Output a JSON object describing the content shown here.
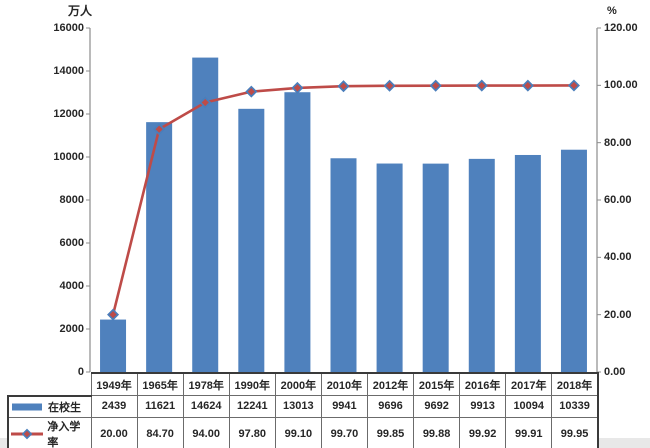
{
  "chart_data": {
    "type": "bar",
    "combo": "bar+line",
    "title": "",
    "categories": [
      "1949年",
      "1965年",
      "1978年",
      "1990年",
      "2000年",
      "2010年",
      "2012年",
      "2015年",
      "2016年",
      "2017年",
      "2018年"
    ],
    "series": [
      {
        "name": "在校生",
        "type": "bar",
        "axis": "left",
        "color": "#4f81bd",
        "values": [
          2439,
          11621,
          14624,
          12241,
          13013,
          9941,
          9696,
          9692,
          9913,
          10094,
          10339
        ]
      },
      {
        "name": "净入学率",
        "type": "line",
        "axis": "right",
        "color": "#be4b48",
        "marker": "diamond",
        "marker_border": "#4a7ebb",
        "values": [
          20.0,
          84.7,
          94.0,
          97.8,
          99.1,
          99.7,
          99.85,
          99.88,
          99.92,
          99.91,
          99.95
        ]
      }
    ],
    "left_axis": {
      "title": "万人",
      "min": 0,
      "max": 16000,
      "step": 2000,
      "tick_labels": [
        "0",
        "2000",
        "4000",
        "6000",
        "8000",
        "10000",
        "12000",
        "14000",
        "16000"
      ]
    },
    "right_axis": {
      "title": "%",
      "min": 0,
      "max": 120,
      "step": 20,
      "tick_labels": [
        "0.00",
        "20.00",
        "40.00",
        "60.00",
        "80.00",
        "100.00",
        "120.00"
      ]
    },
    "grid": false,
    "legend_position": "table-left"
  },
  "table": {
    "header_row": [
      "1949年",
      "1965年",
      "1978年",
      "1990年",
      "2000年",
      "2010年",
      "2012年",
      "2015年",
      "2016年",
      "2017年",
      "2018年"
    ],
    "rows": [
      {
        "legend": "在校生",
        "cells": [
          "2439",
          "11621",
          "14624",
          "12241",
          "13013",
          "9941",
          "9696",
          "9692",
          "9913",
          "10094",
          "10339"
        ]
      },
      {
        "legend": "净入学率",
        "cells": [
          "20.00",
          "84.70",
          "94.00",
          "97.80",
          "99.10",
          "99.70",
          "99.85",
          "99.88",
          "99.92",
          "99.91",
          "99.95"
        ]
      }
    ]
  },
  "colors": {
    "bar": "#4f81bd",
    "line": "#be4b48",
    "marker_border": "#4a7ebb",
    "axis_line": "#8c8c8c",
    "text": "#262626",
    "border_outer": "#3a3a3a",
    "border_inner": "#6b6b6b",
    "bottom_strip": "#e8e8e8"
  }
}
